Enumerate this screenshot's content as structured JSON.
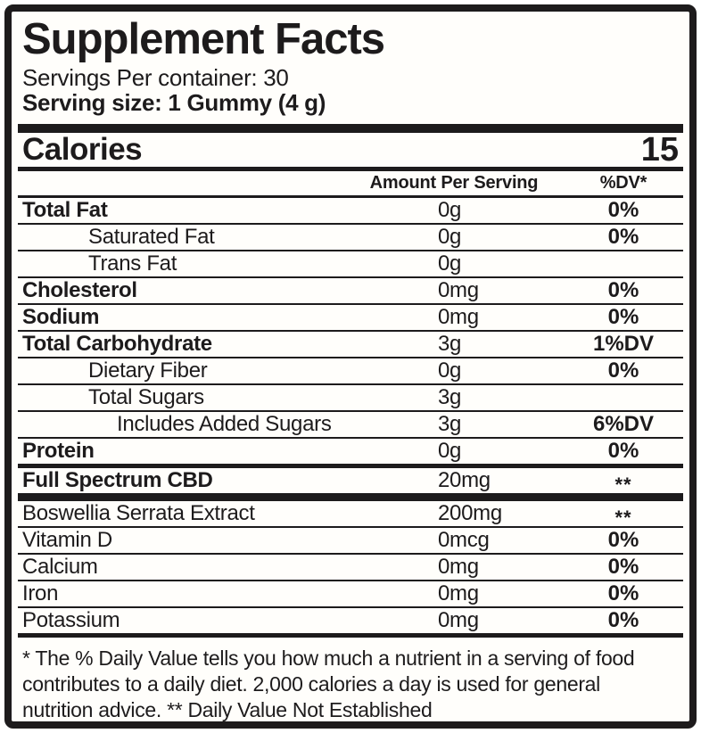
{
  "colors": {
    "ink": "#1d1b1c",
    "background": "#fffefb"
  },
  "label": {
    "title": "Supplement Facts",
    "servings_per_container": "Servings Per container: 30",
    "serving_size": "Serving size: 1 Gummy (4 g)",
    "calories": {
      "label": "Calories",
      "value": "15"
    },
    "columns": {
      "amount": "Amount Per Serving",
      "dv": "%DV*"
    },
    "rows": [
      {
        "name": "Total Fat",
        "amount": "0g",
        "dv": "0%",
        "bold": true,
        "indent": 0,
        "after": "line"
      },
      {
        "name": "Saturated Fat",
        "amount": "0g",
        "dv": "0%",
        "bold": false,
        "indent": 1,
        "after": "line"
      },
      {
        "name": "Trans Fat",
        "amount": "0g",
        "dv": "",
        "bold": false,
        "indent": 1,
        "after": "line"
      },
      {
        "name": "Cholesterol",
        "amount": "0mg",
        "dv": "0%",
        "bold": true,
        "indent": 0,
        "after": "line"
      },
      {
        "name": "Sodium",
        "amount": "0mg",
        "dv": "0%",
        "bold": true,
        "indent": 0,
        "after": "line"
      },
      {
        "name": "Total Carbohydrate",
        "amount": "3g",
        "dv": "1%DV",
        "bold": true,
        "indent": 0,
        "after": "line"
      },
      {
        "name": "Dietary Fiber",
        "amount": "0g",
        "dv": "0%",
        "bold": false,
        "indent": 1,
        "after": "line"
      },
      {
        "name": "Total Sugars",
        "amount": "3g",
        "dv": "",
        "bold": false,
        "indent": 1,
        "after": "line"
      },
      {
        "name": "Includes Added Sugars",
        "amount": "3g",
        "dv": "6%DV",
        "bold": false,
        "indent": 2,
        "after": "line"
      },
      {
        "name": "Protein",
        "amount": "0g",
        "dv": "0%",
        "bold": true,
        "indent": 0,
        "after": "bar-med"
      },
      {
        "name": "Full Spectrum CBD",
        "amount": "20mg",
        "dv": "**",
        "bold": true,
        "indent": 0,
        "after": "bar-heavy"
      },
      {
        "name": "Boswellia Serrata Extract",
        "amount": "200mg",
        "dv": "**",
        "bold": false,
        "indent": 0,
        "after": "line"
      },
      {
        "name": "Vitamin D",
        "amount": "0mcg",
        "dv": "0%",
        "bold": false,
        "indent": 0,
        "after": "line"
      },
      {
        "name": "Calcium",
        "amount": "0mg",
        "dv": "0%",
        "bold": false,
        "indent": 0,
        "after": "line"
      },
      {
        "name": "Iron",
        "amount": "0mg",
        "dv": "0%",
        "bold": false,
        "indent": 0,
        "after": "line"
      },
      {
        "name": "Potassium",
        "amount": "0mg",
        "dv": "0%",
        "bold": false,
        "indent": 0,
        "after": "bar-med"
      }
    ],
    "footnote_lines": [
      "* The % Daily Value tells you how much a nutrient in a serving of food",
      "contributes to a daily diet. 2,000 calories a day is used for general",
      "nutrition advice. ** Daily Value Not Established"
    ]
  }
}
